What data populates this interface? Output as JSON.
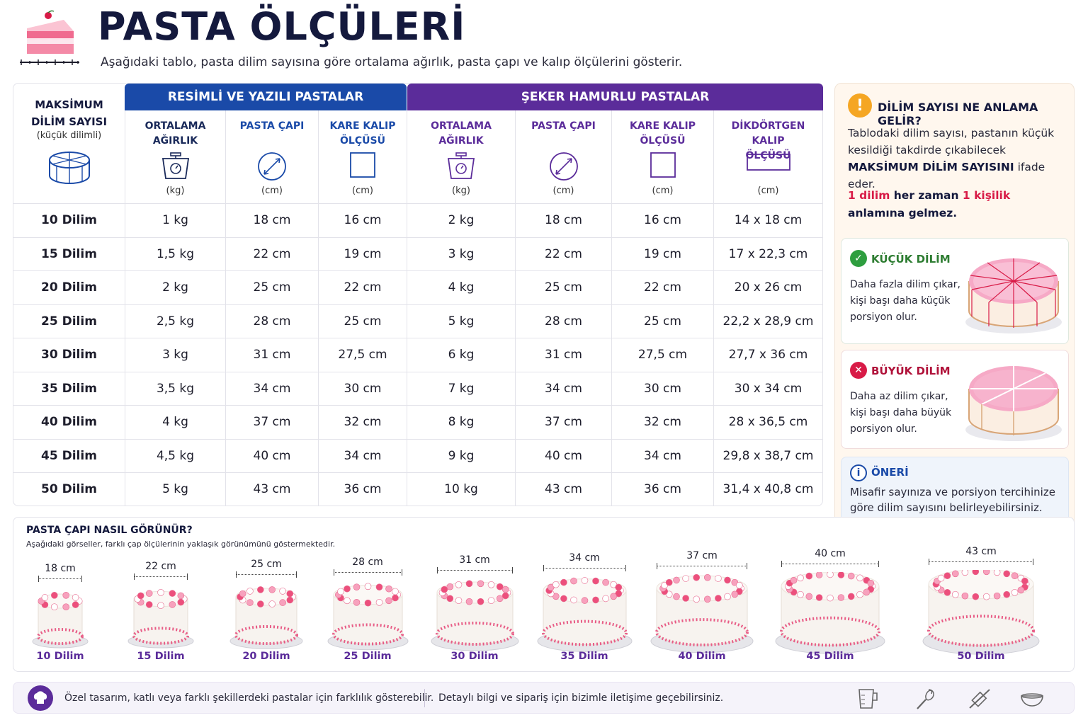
{
  "header": {
    "title": "PASTA ÖLÇÜLERİ",
    "subtitle": "Aşağıdaki tablo, pasta dilim sayısına göre ortalama ağırlık, pasta çapı ve kalıp ölçülerini gösterir."
  },
  "table": {
    "first_col": {
      "title_line1": "MAKSİMUM",
      "title_line2": "DİLİM SAYISI",
      "subtitle": "(küçük dilimli)"
    },
    "groups": [
      "RESİMLİ VE YAZILI PASTALAR",
      "ŞEKER HAMURLU PASTALAR"
    ],
    "columns": [
      {
        "line1": "ORTALAMA",
        "line2": "AĞIRLIK",
        "unit": "(kg)",
        "icon": "scale-icon"
      },
      {
        "line1": "PASTA ÇAPI",
        "line2": "",
        "unit": "(cm)",
        "icon": "diameter-icon"
      },
      {
        "line1": "KARE KALIP",
        "line2": "ÖLÇÜSÜ",
        "unit": "(cm)",
        "icon": "square-icon"
      },
      {
        "line1": "ORTALAMA",
        "line2": "AĞIRLIK",
        "unit": "(kg)",
        "icon": "scale-icon"
      },
      {
        "line1": "PASTA ÇAPI",
        "line2": "",
        "unit": "(cm)",
        "icon": "diameter-icon"
      },
      {
        "line1": "KARE KALIP",
        "line2": "ÖLÇÜSÜ",
        "unit": "(cm)",
        "icon": "square-icon"
      },
      {
        "line1": "DİKDÖRTGEN KALIP",
        "line2": "ÖLÇÜSÜ",
        "unit": "(cm)",
        "icon": "rectangle-icon"
      }
    ],
    "rows": [
      [
        "10 Dilim",
        "1 kg",
        "18 cm",
        "16 cm",
        "2 kg",
        "18 cm",
        "16 cm",
        "14 x 18 cm"
      ],
      [
        "15 Dilim",
        "1,5 kg",
        "22 cm",
        "19 cm",
        "3 kg",
        "22 cm",
        "19 cm",
        "17 x 22,3 cm"
      ],
      [
        "20 Dilim",
        "2 kg",
        "25 cm",
        "22 cm",
        "4 kg",
        "25 cm",
        "22 cm",
        "20 x 26 cm"
      ],
      [
        "25 Dilim",
        "2,5 kg",
        "28 cm",
        "25 cm",
        "5 kg",
        "28 cm",
        "25 cm",
        "22,2 x 28,9 cm"
      ],
      [
        "30 Dilim",
        "3 kg",
        "31 cm",
        "27,5 cm",
        "6 kg",
        "31 cm",
        "27,5 cm",
        "27,7 x 36 cm"
      ],
      [
        "35 Dilim",
        "3,5 kg",
        "34 cm",
        "30 cm",
        "7 kg",
        "34 cm",
        "30 cm",
        "30 x 34 cm"
      ],
      [
        "40 Dilim",
        "4 kg",
        "37 cm",
        "32 cm",
        "8 kg",
        "37 cm",
        "32 cm",
        "28 x 36,5 cm"
      ],
      [
        "45 Dilim",
        "4,5 kg",
        "40 cm",
        "34 cm",
        "9 kg",
        "40 cm",
        "34 cm",
        "29,8 x 38,7 cm"
      ],
      [
        "50 Dilim",
        "5 kg",
        "43 cm",
        "36 cm",
        "10 kg",
        "43 cm",
        "36 cm",
        "31,4 x 40,8 cm"
      ]
    ]
  },
  "info": {
    "title": "DİLİM SAYISI NE ANLAMA GELİR?",
    "desc_part1": "Tablodaki dilim sayısı, pastanın küçük kesildiği takdirde çıkabilecek ",
    "desc_bold": "MAKSİMUM DİLİM SAYISINI",
    "desc_part2": " ifade eder.",
    "note_red1": "1 dilim",
    "note_mid": " her zaman ",
    "note_red2": "1 kişilik",
    "note_end": "anlamına gelmez.",
    "small": {
      "title": "KÜÇÜK DİLİM",
      "text": "Daha fazla dilim çıkar, kişi başı daha küçük porsiyon olur."
    },
    "big": {
      "title": "BÜYÜK DİLİM",
      "text": "Daha az dilim çıkar, kişi başı daha büyük porsiyon olur."
    },
    "tip": {
      "title": "ÖNERİ",
      "text": "Misafir sayınıza ve porsiyon tercihinize göre dilim sayısını belirleyebilirsiniz."
    }
  },
  "diameters": {
    "title": "PASTA ÇAPI NASIL GÖRÜNÜR?",
    "subtitle": "Aşağıdaki görseller, farklı çap ölçülerinin yaklaşık görünümünü göstermektedir.",
    "items": [
      {
        "size": "18 cm",
        "label": "10 Dilim",
        "diameter_cm": 18
      },
      {
        "size": "22 cm",
        "label": "15 Dilim",
        "diameter_cm": 22
      },
      {
        "size": "25 cm",
        "label": "20 Dilim",
        "diameter_cm": 25
      },
      {
        "size": "28 cm",
        "label": "25 Dilim",
        "diameter_cm": 28
      },
      {
        "size": "31 cm",
        "label": "30 Dilim",
        "diameter_cm": 31
      },
      {
        "size": "34 cm",
        "label": "35 Dilim",
        "diameter_cm": 34
      },
      {
        "size": "37 cm",
        "label": "40 Dilim",
        "diameter_cm": 37
      },
      {
        "size": "40 cm",
        "label": "45 Dilim",
        "diameter_cm": 40
      },
      {
        "size": "43 cm",
        "label": "50 Dilim",
        "diameter_cm": 43
      }
    ]
  },
  "footer": {
    "note1": "Özel tasarım, katlı veya farklı şekillerdeki pastalar için farklılık gösterebilir.",
    "note2": "Detaylı bilgi ve sipariş için bizimle iletişime geçebilirsiniz.",
    "icons": [
      "measuring-cup-icon",
      "whisk-icon",
      "rolling-pin-icon",
      "bowl-icon"
    ]
  },
  "colors": {
    "blue": "#1a4aa8",
    "purple": "#5b2c9a",
    "red": "#d81b47",
    "amber": "#f5a623",
    "green": "#2e9e3f"
  }
}
